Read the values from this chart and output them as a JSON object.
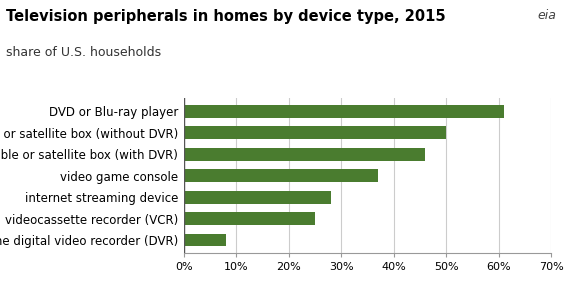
{
  "title": "Television peripherals in homes by device type, 2015",
  "subtitle": "share of U.S. households",
  "categories": [
    "standalone digital video recorder (DVR)",
    "videocassette recorder (VCR)",
    "internet streaming device",
    "video game console",
    "cable or satellite box (with DVR)",
    "cable or satellite box (without DVR)",
    "DVD or Blu-ray player"
  ],
  "values": [
    8,
    25,
    28,
    37,
    46,
    50,
    61
  ],
  "bar_color": "#4a7c2f",
  "xlim": [
    0,
    70
  ],
  "xticks": [
    0,
    10,
    20,
    30,
    40,
    50,
    60,
    70
  ],
  "xtick_labels": [
    "0%",
    "10%",
    "20%",
    "30%",
    "40%",
    "50%",
    "60%",
    "70%"
  ],
  "title_fontsize": 10.5,
  "subtitle_fontsize": 9,
  "tick_fontsize": 8,
  "label_fontsize": 8.5,
  "background_color": "#ffffff",
  "grid_color": "#cccccc"
}
